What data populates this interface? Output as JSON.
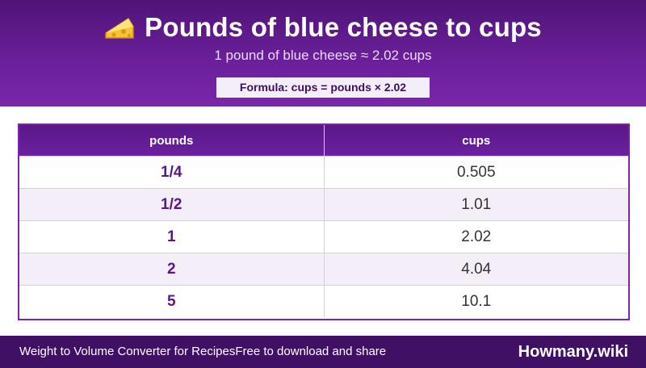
{
  "header": {
    "title": "Pounds of blue cheese to cups",
    "icon": "cheese-icon",
    "subtitle": "1 pound of blue cheese ≈ 2.02 cups",
    "formula": "Formula: cups = pounds × 2.02"
  },
  "table": {
    "columns": [
      "pounds",
      "cups"
    ],
    "rows": [
      {
        "pounds": "1/4",
        "cups": "0.505"
      },
      {
        "pounds": "1/2",
        "cups": "1.01"
      },
      {
        "pounds": "1",
        "cups": "2.02"
      },
      {
        "pounds": "2",
        "cups": "4.04"
      },
      {
        "pounds": "5",
        "cups": "10.1"
      }
    ]
  },
  "footer": {
    "left_text": "Weight to Volume Converter for Recipes",
    "middle_text": "Free to download and share",
    "brand": "Howmany.wiki"
  },
  "colors": {
    "header_purple": "#6a1f99",
    "footer_purple": "#3f1063",
    "row_alt": "#f4eef9"
  }
}
